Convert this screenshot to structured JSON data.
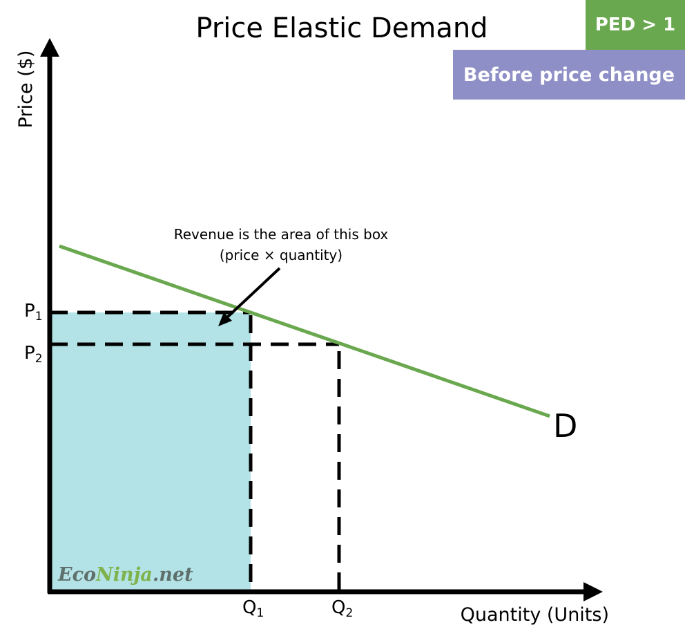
{
  "title": "Price Elastic Demand",
  "badges": {
    "ped": "PED > 1",
    "state": "Before price change"
  },
  "axes": {
    "y_label": "Price ($)",
    "x_label": "Quantity (Units)"
  },
  "ticks": {
    "p1": {
      "letter": "P",
      "sub": "1"
    },
    "p2": {
      "letter": "P",
      "sub": "2"
    },
    "q1": {
      "letter": "Q",
      "sub": "1"
    },
    "q2": {
      "letter": "Q",
      "sub": "2"
    }
  },
  "curve_label": "D",
  "annotation": {
    "line1": "Revenue is the area of this box",
    "line2": "(price × quantity)"
  },
  "watermark": {
    "part1": "Eco",
    "part2": "Ninja",
    "part3": ".net"
  },
  "colors": {
    "demand_curve": "#6aa84f",
    "revenue_box": "#b3e3e6",
    "ped_badge": "#6aa84f",
    "state_badge": "#8e8fc6",
    "watermark_dark": "#5f6f6c",
    "watermark_green": "#7fb24b"
  }
}
